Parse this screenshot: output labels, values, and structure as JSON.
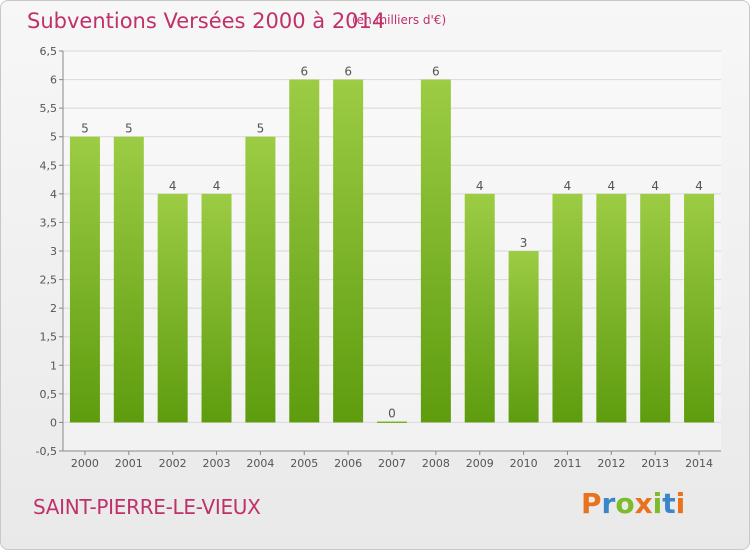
{
  "title": "Subventions Versées 2000 à 2014",
  "subtitle": "(en milliers d'€)",
  "commune": "SAINT-PIERRE-LE-VIEUX",
  "logo": {
    "text": "Proxiti",
    "colors": [
      "#e8731f",
      "#3a86c8",
      "#7dbb2a",
      "#e8731f",
      "#7dbb2a",
      "#3a86c8",
      "#e8731f"
    ]
  },
  "colors": {
    "bar_top": "#9ccc44",
    "bar_bottom": "#5e9c0e",
    "grid": "#d8d8d8",
    "accent": "#c0306a"
  },
  "chart_data": {
    "type": "bar",
    "title": "Subventions Versées 2000 à 2014",
    "subtitle": "(en milliers d'€)",
    "categories": [
      "2000",
      "2001",
      "2002",
      "2003",
      "2004",
      "2005",
      "2006",
      "2007",
      "2008",
      "2009",
      "2010",
      "2011",
      "2012",
      "2013",
      "2014"
    ],
    "values": [
      5,
      5,
      4,
      4,
      5,
      6,
      6,
      0,
      6,
      4,
      3,
      4,
      4,
      4,
      4
    ],
    "ylim": [
      -0.5,
      6.5
    ],
    "yticks": [
      "-0,5",
      "0",
      "0,5",
      "1",
      "1,5",
      "2",
      "2,5",
      "3",
      "3,5",
      "4",
      "4,5",
      "5",
      "5,5",
      "6",
      "6,5"
    ],
    "grid": true,
    "xlabel": "",
    "ylabel": ""
  }
}
